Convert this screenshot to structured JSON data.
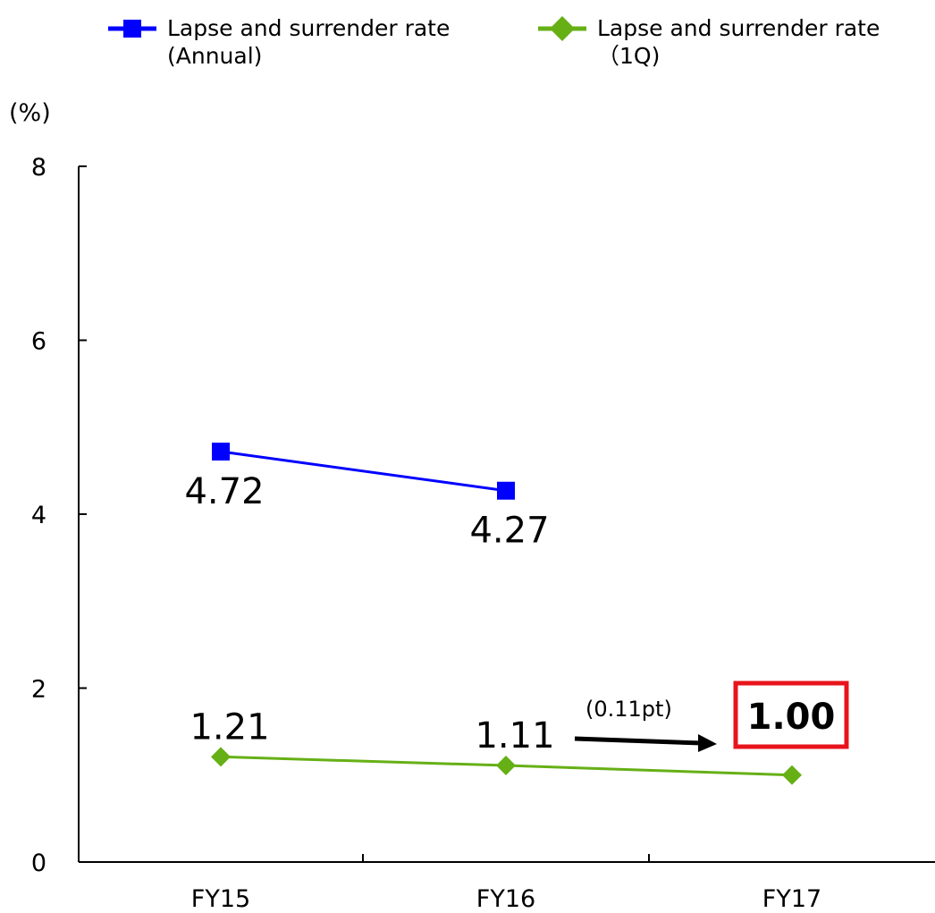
{
  "chart_data": {
    "type": "line",
    "categories": [
      "FY15",
      "FY16",
      "FY17"
    ],
    "ylim": [
      0,
      8
    ],
    "y_ticks": [
      "0",
      "2",
      "4",
      "6",
      "8"
    ],
    "yunit": "(%)",
    "grid": false,
    "legend_position": "top",
    "series": [
      {
        "name_line1": "Lapse and surrender rate",
        "name_line2": "(Annual)",
        "values": [
          4.72,
          4.27,
          null
        ],
        "labels": [
          "4.72",
          "4.27",
          ""
        ],
        "color": "#0000ff",
        "marker": "square"
      },
      {
        "name_line1": "Lapse and surrender rate",
        "name_line2": "（1Q)",
        "values": [
          1.21,
          1.11,
          1.0
        ],
        "labels": [
          "1.21",
          "1.11",
          "1.00"
        ],
        "color": "#66b016",
        "marker": "diamond"
      }
    ],
    "annotations": {
      "change_text": "(0.11pt)",
      "highlight_color": "#e8141c"
    }
  }
}
